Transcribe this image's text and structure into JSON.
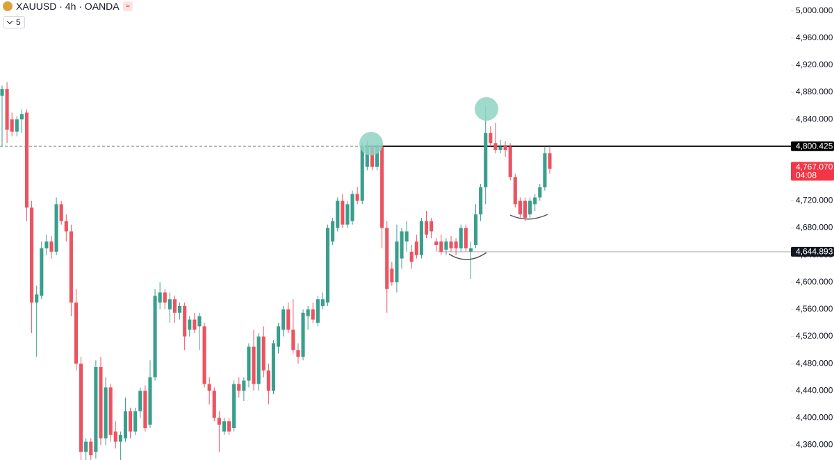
{
  "header": {
    "symbol": "XAUUSD · 4h · OANDA",
    "interval_button": "5"
  },
  "chart_data": {
    "type": "candlestick",
    "up_color": "#3a9e8d",
    "down_color": "#ea5460",
    "ylim": [
      4338,
      5016
    ],
    "yticks": [
      {
        "value": 5000,
        "label": "5,000.000"
      },
      {
        "value": 4960,
        "label": "4,960.000"
      },
      {
        "value": 4920,
        "label": "4,920.000"
      },
      {
        "value": 4880,
        "label": "4,880.000"
      },
      {
        "value": 4840,
        "label": "4,840.000"
      },
      {
        "value": 4800,
        "label": "4,800.000"
      },
      {
        "value": 4760,
        "label": "4,760.000"
      },
      {
        "value": 4720,
        "label": "4,720.000"
      },
      {
        "value": 4680,
        "label": "4,680.000"
      },
      {
        "value": 4640,
        "label": "4,640.000"
      },
      {
        "value": 4600,
        "label": "4,600.000"
      },
      {
        "value": 4560,
        "label": "4,560.000"
      },
      {
        "value": 4520,
        "label": "4,520.000"
      },
      {
        "value": 4480,
        "label": "4,480.000"
      },
      {
        "value": 4440,
        "label": "4,440.000"
      },
      {
        "value": 4400,
        "label": "4,400.000"
      },
      {
        "value": 4360,
        "label": "4,360.000"
      }
    ],
    "lines": [
      {
        "value": 4800.425,
        "label": "4,800.425",
        "color": "#000000"
      },
      {
        "value": 4644.893,
        "label": "4,644.893",
        "color": "#c8c8c8"
      }
    ],
    "current_price": {
      "value": 4767.07,
      "label": "4,767.070",
      "countdown": "04:08",
      "color": "#f23645"
    },
    "candles": [
      {
        "open": 4875,
        "high": 4890,
        "low": 4800,
        "close": 4885
      },
      {
        "open": 4885,
        "high": 4895,
        "low": 4805,
        "close": 4825
      },
      {
        "open": 4840,
        "high": 4850,
        "low": 4815,
        "close": 4822
      },
      {
        "open": 4822,
        "high": 4845,
        "low": 4815,
        "close": 4840
      },
      {
        "open": 4840,
        "high": 4855,
        "low": 4820,
        "close": 4848
      },
      {
        "open": 4850,
        "high": 4855,
        "low": 4690,
        "close": 4710
      },
      {
        "open": 4710,
        "high": 4720,
        "low": 4525,
        "close": 4570
      },
      {
        "open": 4570,
        "high": 4595,
        "low": 4490,
        "close": 4582
      },
      {
        "open": 4580,
        "high": 4660,
        "low": 4575,
        "close": 4650
      },
      {
        "open": 4650,
        "high": 4670,
        "low": 4640,
        "close": 4660
      },
      {
        "open": 4660,
        "high": 4668,
        "low": 4635,
        "close": 4645
      },
      {
        "open": 4645,
        "high": 4725,
        "low": 4640,
        "close": 4715
      },
      {
        "open": 4715,
        "high": 4720,
        "low": 4685,
        "close": 4690
      },
      {
        "open": 4690,
        "high": 4700,
        "low": 4660,
        "close": 4675
      },
      {
        "open": 4675,
        "high": 4685,
        "low": 4550,
        "close": 4570
      },
      {
        "open": 4570,
        "high": 4590,
        "low": 4470,
        "close": 4480
      },
      {
        "open": 4480,
        "high": 4490,
        "low": 4338,
        "close": 4350
      },
      {
        "open": 4350,
        "high": 4370,
        "low": 4338,
        "close": 4365
      },
      {
        "open": 4365,
        "high": 4370,
        "low": 4338,
        "close": 4345
      },
      {
        "open": 4350,
        "high": 4485,
        "low": 4340,
        "close": 4475
      },
      {
        "open": 4475,
        "high": 4490,
        "low": 4360,
        "close": 4370
      },
      {
        "open": 4370,
        "high": 4460,
        "low": 4360,
        "close": 4445
      },
      {
        "open": 4445,
        "high": 4450,
        "low": 4365,
        "close": 4375
      },
      {
        "open": 4380,
        "high": 4395,
        "low": 4355,
        "close": 4365
      },
      {
        "open": 4365,
        "high": 4380,
        "low": 4338,
        "close": 4375
      },
      {
        "open": 4370,
        "high": 4430,
        "low": 4365,
        "close": 4410
      },
      {
        "open": 4410,
        "high": 4415,
        "low": 4370,
        "close": 4380
      },
      {
        "open": 4380,
        "high": 4415,
        "low": 4375,
        "close": 4410
      },
      {
        "open": 4410,
        "high": 4445,
        "low": 4400,
        "close": 4440
      },
      {
        "open": 4440,
        "high": 4448,
        "low": 4380,
        "close": 4385
      },
      {
        "open": 4390,
        "high": 4485,
        "low": 4385,
        "close": 4460
      },
      {
        "open": 4460,
        "high": 4590,
        "low": 4455,
        "close": 4580
      },
      {
        "open": 4570,
        "high": 4600,
        "low": 4560,
        "close": 4585
      },
      {
        "open": 4585,
        "high": 4590,
        "low": 4560,
        "close": 4570
      },
      {
        "open": 4560,
        "high": 4585,
        "low": 4540,
        "close": 4575
      },
      {
        "open": 4575,
        "high": 4580,
        "low": 4540,
        "close": 4555
      },
      {
        "open": 4555,
        "high": 4570,
        "low": 4545,
        "close": 4565
      },
      {
        "open": 4565,
        "high": 4570,
        "low": 4500,
        "close": 4520
      },
      {
        "open": 4530,
        "high": 4550,
        "low": 4520,
        "close": 4545
      },
      {
        "open": 4545,
        "high": 4555,
        "low": 4525,
        "close": 4530
      },
      {
        "open": 4535,
        "high": 4555,
        "low": 4500,
        "close": 4550
      },
      {
        "open": 4535,
        "high": 4540,
        "low": 4445,
        "close": 4450
      },
      {
        "open": 4450,
        "high": 4460,
        "low": 4420,
        "close": 4440
      },
      {
        "open": 4440,
        "high": 4445,
        "low": 4395,
        "close": 4400
      },
      {
        "open": 4400,
        "high": 4410,
        "low": 4350,
        "close": 4390
      },
      {
        "open": 4380,
        "high": 4400,
        "low": 4375,
        "close": 4395
      },
      {
        "open": 4395,
        "high": 4400,
        "low": 4375,
        "close": 4380
      },
      {
        "open": 4385,
        "high": 4455,
        "low": 4380,
        "close": 4450
      },
      {
        "open": 4450,
        "high": 4460,
        "low": 4430,
        "close": 4440
      },
      {
        "open": 4440,
        "high": 4460,
        "low": 4425,
        "close": 4455
      },
      {
        "open": 4455,
        "high": 4510,
        "low": 4445,
        "close": 4505
      },
      {
        "open": 4505,
        "high": 4530,
        "low": 4440,
        "close": 4450
      },
      {
        "open": 4450,
        "high": 4525,
        "low": 4440,
        "close": 4520
      },
      {
        "open": 4520,
        "high": 4535,
        "low": 4460,
        "close": 4470
      },
      {
        "open": 4470,
        "high": 4480,
        "low": 4420,
        "close": 4440
      },
      {
        "open": 4440,
        "high": 4515,
        "low": 4435,
        "close": 4510
      },
      {
        "open": 4505,
        "high": 4540,
        "low": 4495,
        "close": 4535
      },
      {
        "open": 4530,
        "high": 4565,
        "low": 4520,
        "close": 4560
      },
      {
        "open": 4560,
        "high": 4570,
        "low": 4525,
        "close": 4530
      },
      {
        "open": 4530,
        "high": 4575,
        "low": 4495,
        "close": 4500
      },
      {
        "open": 4500,
        "high": 4510,
        "low": 4480,
        "close": 4490
      },
      {
        "open": 4490,
        "high": 4560,
        "low": 4485,
        "close": 4555
      },
      {
        "open": 4550,
        "high": 4565,
        "low": 4530,
        "close": 4560
      },
      {
        "open": 4560,
        "high": 4570,
        "low": 4540,
        "close": 4545
      },
      {
        "open": 4540,
        "high": 4580,
        "low": 4535,
        "close": 4575
      },
      {
        "open": 4565,
        "high": 4585,
        "low": 4560,
        "close": 4575
      },
      {
        "open": 4570,
        "high": 4685,
        "low": 4565,
        "close": 4680
      },
      {
        "open": 4660,
        "high": 4695,
        "low": 4655,
        "close": 4690
      },
      {
        "open": 4680,
        "high": 4725,
        "low": 4675,
        "close": 4720
      },
      {
        "open": 4720,
        "high": 4730,
        "low": 4680,
        "close": 4685
      },
      {
        "open": 4685,
        "high": 4720,
        "low": 4680,
        "close": 4715
      },
      {
        "open": 4690,
        "high": 4735,
        "low": 4685,
        "close": 4730
      },
      {
        "open": 4730,
        "high": 4740,
        "low": 4715,
        "close": 4720
      },
      {
        "open": 4720,
        "high": 4805,
        "low": 4715,
        "close": 4800
      },
      {
        "open": 4770,
        "high": 4808,
        "low": 4765,
        "close": 4800
      },
      {
        "open": 4800,
        "high": 4805,
        "low": 4765,
        "close": 4770
      },
      {
        "open": 4770,
        "high": 4805,
        "low": 4765,
        "close": 4800
      },
      {
        "open": 4800,
        "high": 4805,
        "low": 4650,
        "close": 4680
      },
      {
        "open": 4680,
        "high": 4690,
        "low": 4555,
        "close": 4590
      },
      {
        "open": 4620,
        "high": 4630,
        "low": 4595,
        "close": 4600
      },
      {
        "open": 4600,
        "high": 4685,
        "low": 4585,
        "close": 4660
      },
      {
        "open": 4635,
        "high": 4680,
        "low": 4620,
        "close": 4675
      },
      {
        "open": 4660,
        "high": 4690,
        "low": 4645,
        "close": 4675
      },
      {
        "open": 4645,
        "high": 4655,
        "low": 4620,
        "close": 4630
      },
      {
        "open": 4660,
        "high": 4670,
        "low": 4635,
        "close": 4640
      },
      {
        "open": 4640,
        "high": 4695,
        "low": 4635,
        "close": 4690
      },
      {
        "open": 4690,
        "high": 4705,
        "low": 4665,
        "close": 4670
      },
      {
        "open": 4690,
        "high": 4695,
        "low": 4665,
        "close": 4675
      },
      {
        "open": 4660,
        "high": 4665,
        "low": 4645,
        "close": 4655
      },
      {
        "open": 4660,
        "high": 4670,
        "low": 4640,
        "close": 4645
      },
      {
        "open": 4648,
        "high": 4665,
        "low": 4640,
        "close": 4660
      },
      {
        "open": 4660,
        "high": 4668,
        "low": 4645,
        "close": 4650
      },
      {
        "open": 4660,
        "high": 4665,
        "low": 4640,
        "close": 4650
      },
      {
        "open": 4650,
        "high": 4685,
        "low": 4645,
        "close": 4680
      },
      {
        "open": 4680,
        "high": 4685,
        "low": 4645,
        "close": 4650
      },
      {
        "open": 4645,
        "high": 4660,
        "low": 4605,
        "close": 4650
      },
      {
        "open": 4655,
        "high": 4715,
        "low": 4650,
        "close": 4700
      },
      {
        "open": 4700,
        "high": 4745,
        "low": 4690,
        "close": 4740
      },
      {
        "open": 4740,
        "high": 4860,
        "low": 4715,
        "close": 4820
      },
      {
        "open": 4820,
        "high": 4830,
        "low": 4800,
        "close": 4805
      },
      {
        "open": 4805,
        "high": 4835,
        "low": 4790,
        "close": 4795
      },
      {
        "open": 4795,
        "high": 4810,
        "low": 4790,
        "close": 4800
      },
      {
        "open": 4802,
        "high": 4808,
        "low": 4785,
        "close": 4795
      },
      {
        "open": 4800,
        "high": 4805,
        "low": 4750,
        "close": 4755
      },
      {
        "open": 4755,
        "high": 4760,
        "low": 4710,
        "close": 4715
      },
      {
        "open": 4720,
        "high": 4725,
        "low": 4695,
        "close": 4700
      },
      {
        "open": 4720,
        "high": 4725,
        "low": 4690,
        "close": 4695
      },
      {
        "open": 4700,
        "high": 4725,
        "low": 4695,
        "close": 4720
      },
      {
        "open": 4715,
        "high": 4730,
        "low": 4705,
        "close": 4725
      },
      {
        "open": 4725,
        "high": 4745,
        "low": 4720,
        "close": 4740
      },
      {
        "open": 4740,
        "high": 4800,
        "low": 4735,
        "close": 4790
      },
      {
        "open": 4790,
        "high": 4800,
        "low": 4760,
        "close": 4767.07
      }
    ]
  }
}
